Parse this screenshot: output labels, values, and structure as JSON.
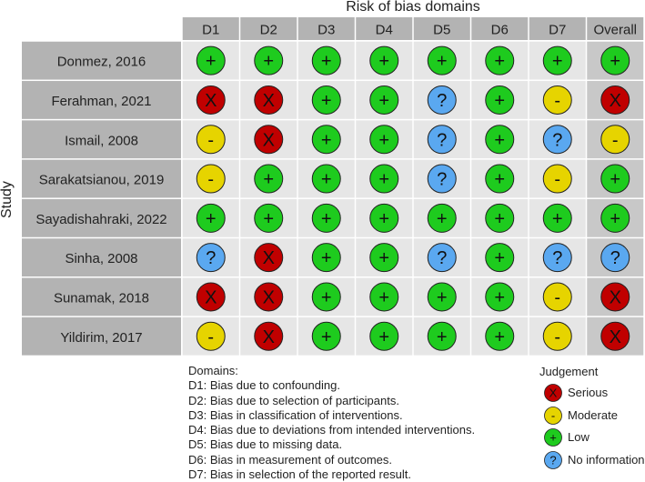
{
  "title": "Risk of bias domains",
  "ylabel": "Study",
  "domains": [
    "D1",
    "D2",
    "D3",
    "D4",
    "D5",
    "D6",
    "D7",
    "Overall"
  ],
  "studies": [
    "Donmez, 2016",
    "Ferahman, 2021",
    "Ismail, 2008",
    "Sarakatsianou, 2019",
    "Sayadishahraki, 2022",
    "Sinha, 2008",
    "Sunamak, 2018",
    "Yildirim, 2017"
  ],
  "symbols": {
    "serious": "X",
    "moderate": "-",
    "low": "+",
    "noinfo": "?"
  },
  "colors": {
    "serious": "#c00000",
    "moderate": "#e6d400",
    "low": "#1ecb1e",
    "noinfo": "#5aa8f0",
    "header_bg": "#b3b3b3",
    "cell_bg": "#e6e6e6",
    "overall_bg": "#c8c8c8",
    "study_bg": "#b3b3b3"
  },
  "grid": [
    [
      "low",
      "low",
      "low",
      "low",
      "low",
      "low",
      "low",
      "low"
    ],
    [
      "serious",
      "serious",
      "low",
      "low",
      "noinfo",
      "low",
      "moderate",
      "serious"
    ],
    [
      "moderate",
      "serious",
      "low",
      "low",
      "noinfo",
      "low",
      "noinfo",
      "moderate"
    ],
    [
      "moderate",
      "low",
      "low",
      "low",
      "noinfo",
      "low",
      "moderate",
      "low"
    ],
    [
      "low",
      "low",
      "low",
      "low",
      "low",
      "low",
      "low",
      "low"
    ],
    [
      "noinfo",
      "serious",
      "low",
      "low",
      "noinfo",
      "low",
      "noinfo",
      "noinfo"
    ],
    [
      "serious",
      "serious",
      "low",
      "low",
      "low",
      "low",
      "moderate",
      "serious"
    ],
    [
      "moderate",
      "serious",
      "low",
      "low",
      "low",
      "low",
      "moderate",
      "serious"
    ]
  ],
  "domains_legend": {
    "heading": "Domains:",
    "items": [
      "D1: Bias due to confounding.",
      "D2: Bias due to selection of participants.",
      "D3: Bias in classification of interventions.",
      "D4: Bias due to deviations from intended interventions.",
      "D5: Bias due to missing data.",
      "D6: Bias in measurement of outcomes.",
      "D7: Bias in selection of the reported result."
    ]
  },
  "judgement_legend": {
    "heading": "Judgement",
    "items": [
      {
        "key": "serious",
        "label": "Serious"
      },
      {
        "key": "moderate",
        "label": "Moderate"
      },
      {
        "key": "low",
        "label": "Low"
      },
      {
        "key": "noinfo",
        "label": "No information"
      }
    ]
  }
}
